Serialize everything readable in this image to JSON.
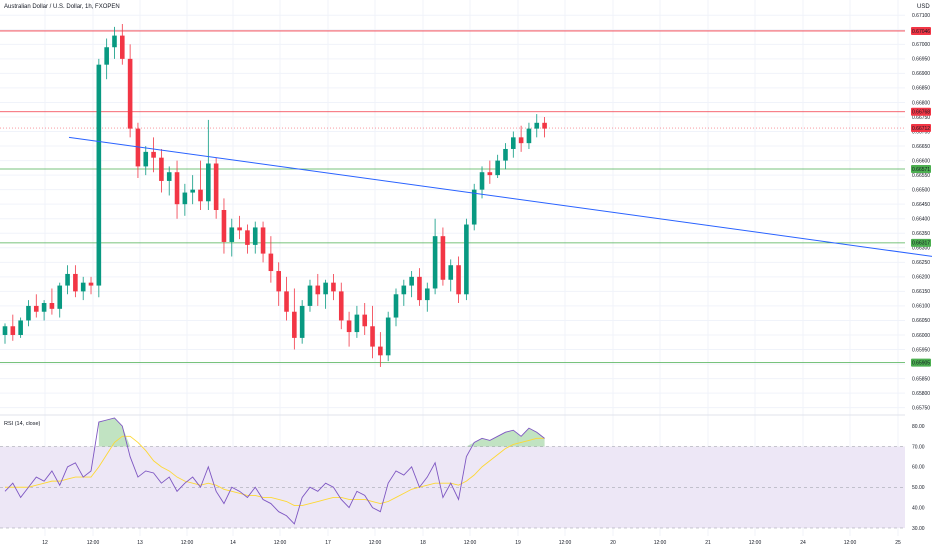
{
  "header": {
    "symbol_title": "Australian Dollar / U.S. Dollar, 1h, FXOPEN",
    "currency": "USD"
  },
  "rsi_panel": {
    "label": "RSI (14, close)"
  },
  "colors": {
    "up": "#089981",
    "down": "#f23645",
    "resistance": "#f23645",
    "support": "#4caf50",
    "trendline": "#2962ff",
    "rsi_line": "#7e57c2",
    "rsi_ma": "#fdd835",
    "rsi_band": "#ede7f6"
  },
  "chart_data": [
    {
      "type": "candlestick",
      "title": "Australian Dollar / U.S. Dollar, 1h, FXOPEN",
      "y_ticks": [
        "0.67100",
        "0.67050",
        "0.67000",
        "0.66950",
        "0.66900",
        "0.66850",
        "0.66800",
        "0.66750",
        "0.66700",
        "0.66650",
        "0.66600",
        "0.66550",
        "0.66500",
        "0.66450",
        "0.66400",
        "0.66350",
        "0.66300",
        "0.66250",
        "0.66200",
        "0.66150",
        "0.66100",
        "0.66050",
        "0.66000",
        "0.65950",
        "0.65900",
        "0.65850",
        "0.65800",
        "0.65750"
      ],
      "x_ticks": [
        "12",
        "12:00",
        "13",
        "12:00",
        "14",
        "12:00",
        "17",
        "12:00",
        "18",
        "12:00",
        "19",
        "12:00",
        "20",
        "12:00",
        "21",
        "12:00",
        "24",
        "12:00",
        "25"
      ],
      "ylim": [
        0.65735,
        0.67125
      ],
      "horizontal_levels": [
        {
          "label": "0.67046",
          "value": 0.67046,
          "color": "#f23645"
        },
        {
          "label": "0.66768",
          "value": 0.66768,
          "color": "#f23645"
        },
        {
          "label": "0.66571",
          "value": 0.66571,
          "color": "#4caf50"
        },
        {
          "label": "0.66317",
          "value": 0.66317,
          "color": "#4caf50"
        },
        {
          "label": "0.65905",
          "value": 0.65905,
          "color": "#4caf50"
        }
      ],
      "last_price": {
        "label": "0.66712",
        "value": 0.66712
      },
      "trendline": {
        "start": [
          1.5,
          0.6668
        ],
        "end": [
          19.5,
          0.6627
        ]
      },
      "candles": [
        [
          0.66,
          0.6604,
          0.6597,
          0.6603
        ],
        [
          0.6603,
          0.6607,
          0.6598,
          0.66
        ],
        [
          0.66,
          0.6606,
          0.6599,
          0.6605
        ],
        [
          0.6605,
          0.6612,
          0.6603,
          0.661
        ],
        [
          0.661,
          0.6614,
          0.6606,
          0.6608
        ],
        [
          0.6608,
          0.6612,
          0.6605,
          0.6611
        ],
        [
          0.6611,
          0.6616,
          0.6607,
          0.6609
        ],
        [
          0.6609,
          0.6618,
          0.6606,
          0.6617
        ],
        [
          0.6617,
          0.6624,
          0.6614,
          0.6621
        ],
        [
          0.6621,
          0.6624,
          0.6613,
          0.6615
        ],
        [
          0.6615,
          0.662,
          0.6612,
          0.6618
        ],
        [
          0.6618,
          0.662,
          0.6614,
          0.6617
        ],
        [
          0.6617,
          0.6695,
          0.6613,
          0.6693
        ],
        [
          0.6693,
          0.6702,
          0.6688,
          0.6699
        ],
        [
          0.6699,
          0.6706,
          0.6695,
          0.6703
        ],
        [
          0.6703,
          0.6707,
          0.6693,
          0.6695
        ],
        [
          0.6695,
          0.67,
          0.6668,
          0.6671
        ],
        [
          0.6671,
          0.6673,
          0.6654,
          0.6658
        ],
        [
          0.6658,
          0.6665,
          0.6655,
          0.6663
        ],
        [
          0.6663,
          0.6668,
          0.6656,
          0.6661
        ],
        [
          0.6661,
          0.6664,
          0.6649,
          0.6653
        ],
        [
          0.6653,
          0.6658,
          0.6648,
          0.6656
        ],
        [
          0.6656,
          0.666,
          0.664,
          0.6645
        ],
        [
          0.6645,
          0.6652,
          0.6641,
          0.6649
        ],
        [
          0.6649,
          0.6655,
          0.6645,
          0.665
        ],
        [
          0.665,
          0.666,
          0.6643,
          0.6646
        ],
        [
          0.6646,
          0.6674,
          0.6643,
          0.6659
        ],
        [
          0.6659,
          0.6661,
          0.664,
          0.6643
        ],
        [
          0.6643,
          0.6647,
          0.6628,
          0.6632
        ],
        [
          0.6632,
          0.664,
          0.6627,
          0.6637
        ],
        [
          0.6637,
          0.6641,
          0.6633,
          0.6636
        ],
        [
          0.6636,
          0.6638,
          0.6628,
          0.6631
        ],
        [
          0.6631,
          0.6639,
          0.6628,
          0.6637
        ],
        [
          0.6637,
          0.6639,
          0.6625,
          0.6628
        ],
        [
          0.6628,
          0.6634,
          0.6618,
          0.6622
        ],
        [
          0.6622,
          0.6625,
          0.661,
          0.6615
        ],
        [
          0.6615,
          0.662,
          0.6605,
          0.6608
        ],
        [
          0.6608,
          0.6616,
          0.6595,
          0.6599
        ],
        [
          0.6599,
          0.6612,
          0.6597,
          0.661
        ],
        [
          0.661,
          0.6619,
          0.6608,
          0.6617
        ],
        [
          0.6617,
          0.6621,
          0.661,
          0.6614
        ],
        [
          0.6614,
          0.6619,
          0.6609,
          0.6618
        ],
        [
          0.6618,
          0.6621,
          0.6612,
          0.6615
        ],
        [
          0.6615,
          0.6618,
          0.6602,
          0.6605
        ],
        [
          0.6605,
          0.6608,
          0.6596,
          0.6601
        ],
        [
          0.6601,
          0.661,
          0.6599,
          0.6607
        ],
        [
          0.6607,
          0.6611,
          0.66,
          0.6603
        ],
        [
          0.6603,
          0.661,
          0.6592,
          0.6596
        ],
        [
          0.6596,
          0.6601,
          0.6589,
          0.6593
        ],
        [
          0.6593,
          0.6608,
          0.6591,
          0.6606
        ],
        [
          0.6606,
          0.6616,
          0.6603,
          0.6614
        ],
        [
          0.6614,
          0.6619,
          0.661,
          0.6617
        ],
        [
          0.6617,
          0.6622,
          0.6613,
          0.662
        ],
        [
          0.662,
          0.6623,
          0.661,
          0.6612
        ],
        [
          0.6612,
          0.6618,
          0.6608,
          0.6616
        ],
        [
          0.6616,
          0.664,
          0.6614,
          0.6634
        ],
        [
          0.6634,
          0.6637,
          0.6617,
          0.6619
        ],
        [
          0.6619,
          0.6626,
          0.6615,
          0.6624
        ],
        [
          0.6624,
          0.6627,
          0.6611,
          0.6614
        ],
        [
          0.6614,
          0.664,
          0.6612,
          0.6638
        ],
        [
          0.6638,
          0.6652,
          0.6636,
          0.665
        ],
        [
          0.665,
          0.6658,
          0.6647,
          0.6656
        ],
        [
          0.6656,
          0.666,
          0.6652,
          0.6655
        ],
        [
          0.6655,
          0.6662,
          0.6654,
          0.666
        ],
        [
          0.666,
          0.6666,
          0.6657,
          0.6664
        ],
        [
          0.6664,
          0.667,
          0.6661,
          0.6668
        ],
        [
          0.6668,
          0.6672,
          0.6663,
          0.6666
        ],
        [
          0.6666,
          0.6673,
          0.6664,
          0.6671
        ],
        [
          0.6671,
          0.6676,
          0.6668,
          0.6673
        ],
        [
          0.6673,
          0.6675,
          0.6668,
          0.6671
        ]
      ]
    },
    {
      "type": "line",
      "title": "RSI (14, close)",
      "y_ticks": [
        "80.00",
        "70.00",
        "60.00",
        "50.00",
        "40.00",
        "30.00"
      ],
      "ylim": [
        30,
        83
      ],
      "levels": [
        70,
        50,
        30
      ],
      "series": [
        {
          "values": [
            48,
            52,
            45,
            50,
            55,
            53,
            58,
            51,
            60,
            62,
            55,
            58,
            82,
            83,
            84,
            80,
            65,
            55,
            58,
            57,
            52,
            55,
            48,
            52,
            55,
            50,
            60,
            48,
            42,
            50,
            48,
            45,
            50,
            44,
            42,
            38,
            36,
            32,
            45,
            50,
            48,
            52,
            50,
            44,
            40,
            48,
            46,
            40,
            38,
            52,
            58,
            56,
            60,
            50,
            55,
            62,
            45,
            52,
            44,
            65,
            72,
            74,
            73,
            75,
            77,
            78,
            75,
            79,
            77,
            74
          ]
        },
        {
          "values": [
            50,
            50,
            50,
            50,
            51,
            52,
            53,
            53,
            54,
            55,
            55,
            55,
            60,
            66,
            72,
            75,
            75,
            72,
            68,
            63,
            60,
            58,
            55,
            53,
            52,
            51,
            52,
            51,
            49,
            48,
            47,
            46,
            46,
            45,
            45,
            44,
            43,
            41,
            41,
            42,
            43,
            44,
            45,
            45,
            44,
            44,
            44,
            43,
            42,
            43,
            45,
            47,
            49,
            50,
            51,
            52,
            52,
            52,
            51,
            53,
            56,
            60,
            63,
            66,
            69,
            71,
            72,
            73,
            74,
            74
          ]
        }
      ]
    }
  ]
}
